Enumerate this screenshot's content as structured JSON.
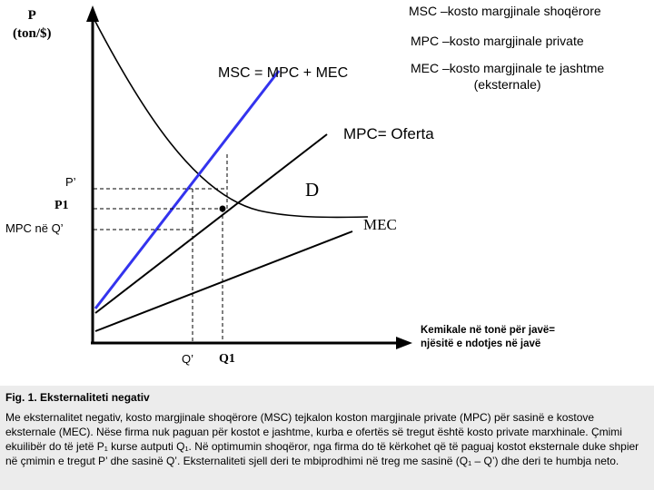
{
  "diagram": {
    "y_axis_label_line1": "P",
    "y_axis_label_line2": "(ton/$)",
    "legend_msc": "MSC –kosto margjinale shoqërore",
    "legend_mpc": "MPC –kosto margjinale private",
    "equation": "MSC = MPC + MEC",
    "legend_mec_line1": "MEC –kosto margjinale te jashtme",
    "legend_mec_line2": "(eksternale)",
    "supply_label": "MPC= Oferta",
    "demand_label": "D",
    "mec_label": "MEC",
    "price_p_prime": "P’",
    "price_p1": "P1",
    "price_mpc_q_prime": "MPC në Q’",
    "quantity_q_prime": "Q’",
    "quantity_q1": "Q1",
    "x_axis_label_line1": "Kemikale në tonë për javë=",
    "x_axis_label_line2": "njësitë e ndotjes në javë",
    "colors": {
      "msc_curve": "#3333ee",
      "lines": "#000000",
      "caption_background": "#ececec"
    }
  },
  "caption": {
    "title": "Fig. 1. Eksternaliteti negativ",
    "text": "Me eksternalitet negativ, kosto margjinale shoqërore (MSC) tejkalon koston margjinale private (MPC) për sasinë e kostove eksternale (MEC). Nëse firma nuk paguan për kostot e jashtme, kurba e ofertës së tregut është kosto private marxhinale. Çmimi ekuilibër do të jetë P₁ kurse autputi Q₁. Në optimumin shoqëror, nga firma do të kërkohet që të paguaj kostot eksternale duke shpier në çmimin e tregut P’ dhe sasinë Q’. Eksternaliteti sjell deri te mbiprodhimi në treg me sasinë (Q₁ – Q’) dhe deri te humbja neto."
  }
}
